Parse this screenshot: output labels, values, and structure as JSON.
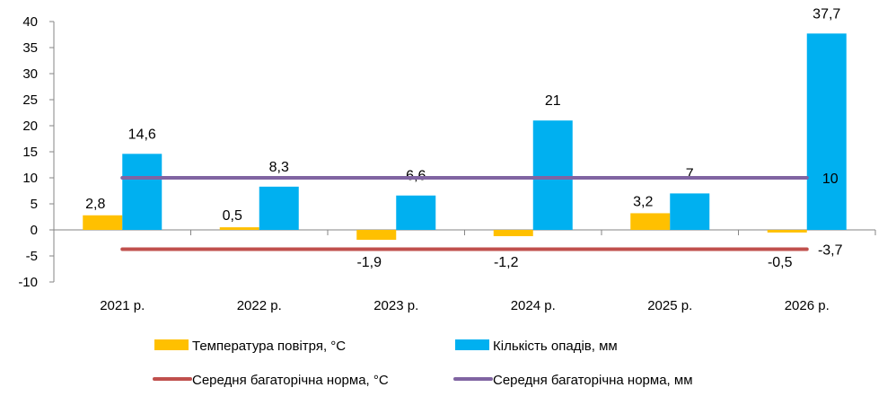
{
  "chart_data": {
    "type": "bar",
    "categories": [
      "2021 р.",
      "2022 р.",
      "2023 р.",
      "2024 р.",
      "2025 р.",
      "2026 р."
    ],
    "series": [
      {
        "name": "Температура повітря, °С",
        "kind": "bar",
        "color": "#FFC000",
        "values": [
          2.8,
          0.5,
          -1.9,
          -1.2,
          3.2,
          -0.5
        ],
        "labels": [
          "2,8",
          "0,5",
          "-1,9",
          "-1,2",
          "3,2",
          "-0,5"
        ]
      },
      {
        "name": "Кількість опадів, мм",
        "kind": "bar",
        "color": "#00B0F0",
        "values": [
          14.6,
          8.3,
          6.6,
          21,
          7,
          37.7
        ],
        "labels": [
          "14,6",
          "8,3",
          "6,6",
          "21",
          "7",
          "37,7"
        ]
      },
      {
        "name": "Середня багаторічна норма, °С",
        "kind": "line",
        "color": "#C0504D",
        "values": [
          -3.7,
          -3.7,
          -3.7,
          -3.7,
          -3.7,
          -3.7
        ],
        "end_label": "-3,7"
      },
      {
        "name": "Середня багаторічна норма, мм",
        "kind": "line",
        "color": "#8064A2",
        "values": [
          10,
          10,
          10,
          10,
          10,
          10
        ],
        "end_label": "10"
      }
    ],
    "ylim": [
      -10,
      40
    ],
    "yticks": [
      -10,
      -5,
      0,
      5,
      10,
      15,
      20,
      25,
      30,
      35,
      40
    ],
    "grid": false,
    "legend_position": "bottom"
  }
}
